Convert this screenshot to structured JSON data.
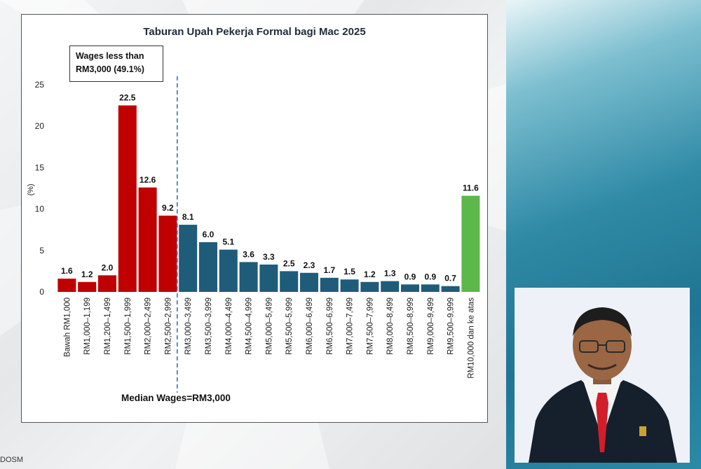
{
  "chart_data": {
    "type": "bar",
    "title": "Taburan Upah Pekerja Formal bagi Mac 2025",
    "ylabel": "(%)",
    "ylim": [
      0,
      25
    ],
    "yticks": [
      0,
      5,
      10,
      15,
      20,
      25
    ],
    "grid": false,
    "categories": [
      "Bawah RM1,000",
      "RM1,000–1,199",
      "RM1,200–1,499",
      "RM1,500–1,999",
      "RM2,000–2,499",
      "RM2,500–2,999",
      "RM3,000–3,499",
      "RM3,500–3,999",
      "RM4,000–4,499",
      "RM4,500–4,999",
      "RM5,000–5,499",
      "RM5,500–5,999",
      "RM6,000–6,499",
      "RM6,500–6,999",
      "RM7,000–7,499",
      "RM7,500–7,999",
      "RM8,000–8,499",
      "RM8,500–8,999",
      "RM9,000–9,499",
      "RM9,500–9,999",
      "RM10,000 dan ke atas"
    ],
    "values": [
      1.6,
      1.2,
      2.0,
      22.5,
      12.6,
      9.2,
      8.1,
      6.0,
      5.1,
      3.6,
      3.3,
      2.5,
      2.3,
      1.7,
      1.5,
      1.2,
      1.3,
      0.9,
      0.9,
      0.7,
      11.6
    ],
    "value_labels": [
      "1.6",
      "1.2",
      "2.0",
      "22.5",
      "12.6",
      "9.2",
      "8.1",
      "6.0",
      "5.1",
      "3.6",
      "3.3",
      "2.5",
      "2.3",
      "1.7",
      "1.5",
      "1.2",
      "1.3",
      "0.9",
      "0.9",
      "0.7",
      "11.6"
    ],
    "bar_colors": [
      "#c00000",
      "#c00000",
      "#c00000",
      "#c00000",
      "#c00000",
      "#c00000",
      "#1f5c7a",
      "#1f5c7a",
      "#1f5c7a",
      "#1f5c7a",
      "#1f5c7a",
      "#1f5c7a",
      "#1f5c7a",
      "#1f5c7a",
      "#1f5c7a",
      "#1f5c7a",
      "#1f5c7a",
      "#1f5c7a",
      "#1f5c7a",
      "#1f5c7a",
      "#5cb84a"
    ],
    "median_divider_after_category_index": 5,
    "annotations": {
      "box_line1": "Wages less than",
      "box_line2": "RM3,000 (49.1%)",
      "median": "Median Wages=RM3,000"
    }
  },
  "source_text": "DOSM",
  "colors": {
    "red_bar": "#c00000",
    "blue_bar": "#1f5c7a",
    "green_bar": "#5cb84a",
    "median_line": "#3b6fc4"
  }
}
